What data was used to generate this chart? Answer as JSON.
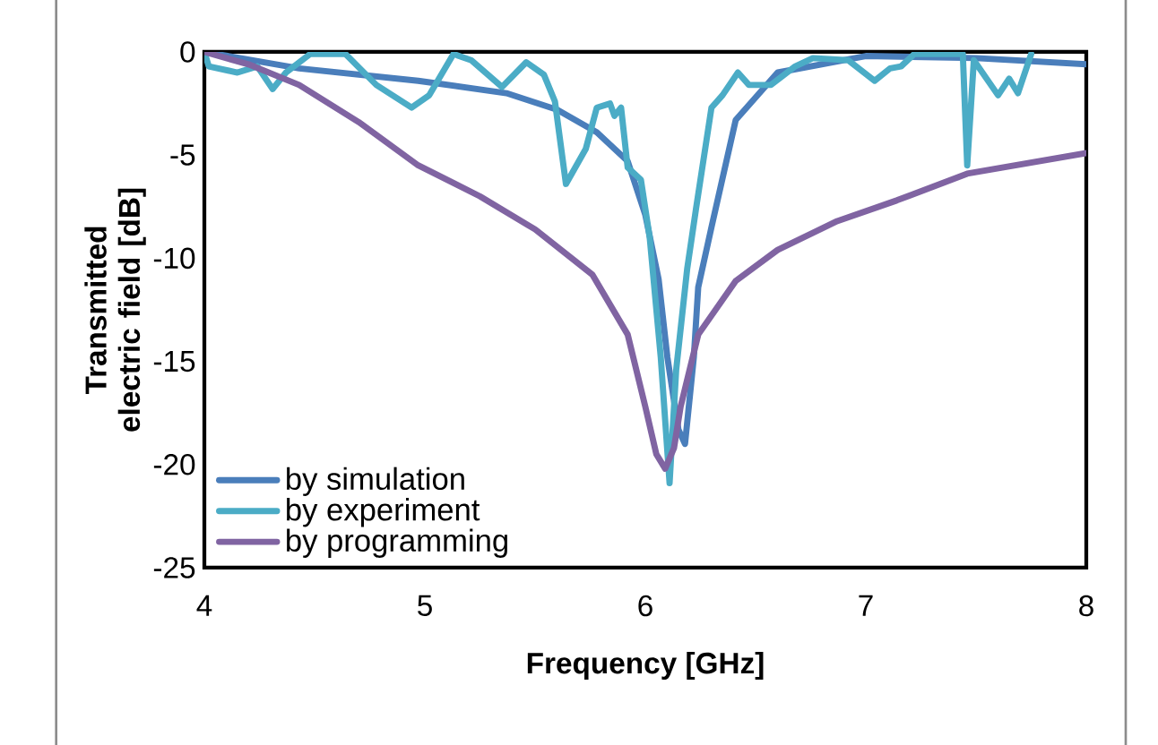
{
  "chart_data": {
    "type": "line",
    "xlabel": "Frequency [GHz]",
    "ylabel": "Transmitted electric field [dB]",
    "xlim": [
      4,
      8
    ],
    "ylim": [
      -25,
      0
    ],
    "xticks": [
      4,
      5,
      6,
      7,
      8
    ],
    "yticks": [
      -25,
      -20,
      -15,
      -10,
      -5,
      0
    ],
    "grid": false,
    "legend": "bottom left",
    "marker": "none",
    "line_style": "solid",
    "series": [
      {
        "name": "by simulation",
        "color": "#4a7ebb",
        "x": [
          4,
          4.43,
          4.97,
          5.37,
          5.6,
          5.78,
          5.92,
          6.0,
          6.06,
          6.1,
          6.15,
          6.18,
          6.22,
          6.24,
          6.3,
          6.41,
          6.6,
          7.0,
          7.5,
          8
        ],
        "values": [
          0,
          -0.8,
          -1.4,
          -2.0,
          -2.8,
          -3.9,
          -5.3,
          -7.9,
          -11,
          -14.8,
          -18.3,
          -19,
          -14.8,
          -11.4,
          -8.5,
          -3.3,
          -1.0,
          -0.2,
          -0.3,
          -0.6
        ]
      },
      {
        "name": "by experiment",
        "color": "#4bacc6",
        "x": [
          4,
          4.02,
          4.15,
          4.24,
          4.31,
          4.37,
          4.48,
          4.64,
          4.78,
          4.94,
          5.02,
          5.13,
          5.21,
          5.35,
          5.46,
          5.54,
          5.59,
          5.64,
          5.73,
          5.78,
          5.84,
          5.86,
          5.89,
          5.92,
          5.98,
          6.02,
          6.07,
          6.11,
          6.14,
          6.19,
          6.23,
          6.3,
          6.35,
          6.42,
          6.47,
          6.57,
          6.68,
          6.76,
          6.92,
          7.04,
          7.11,
          7.16,
          7.22,
          7.3,
          7.44,
          7.46,
          7.49,
          7.6,
          7.65,
          7.69,
          7.75
        ],
        "values": [
          0,
          -0.7,
          -1.0,
          -0.7,
          -1.8,
          -1.0,
          -0.1,
          -0.1,
          -1.6,
          -2.7,
          -2.1,
          -0.1,
          -0.4,
          -1.7,
          -0.5,
          -1.1,
          -2.4,
          -6.4,
          -4.7,
          -2.7,
          -2.5,
          -3.1,
          -2.7,
          -5.6,
          -6.2,
          -9.0,
          -14.8,
          -20.9,
          -15.4,
          -10.5,
          -7.6,
          -2.7,
          -2.1,
          -1.0,
          -1.6,
          -1.6,
          -0.7,
          -0.3,
          -0.4,
          -1.4,
          -0.8,
          -0.7,
          -0.1,
          -0.1,
          -0.1,
          -5.5,
          -0.4,
          -2.1,
          -1.3,
          -2.0,
          -0.1
        ]
      },
      {
        "name": "by programming",
        "color": "#8064a2",
        "x": [
          4,
          4.2,
          4.43,
          4.7,
          4.97,
          5.25,
          5.5,
          5.76,
          5.92,
          6.0,
          6.05,
          6.09,
          6.13,
          6.16,
          6.24,
          6.41,
          6.6,
          6.87,
          7.14,
          7.46,
          8
        ],
        "values": [
          0,
          -0.6,
          -1.6,
          -3.4,
          -5.5,
          -7.0,
          -8.6,
          -10.8,
          -13.7,
          -17.2,
          -19.5,
          -20.2,
          -19.2,
          -17.2,
          -13.7,
          -11.1,
          -9.6,
          -8.2,
          -7.2,
          -5.9,
          -4.9
        ]
      }
    ]
  }
}
